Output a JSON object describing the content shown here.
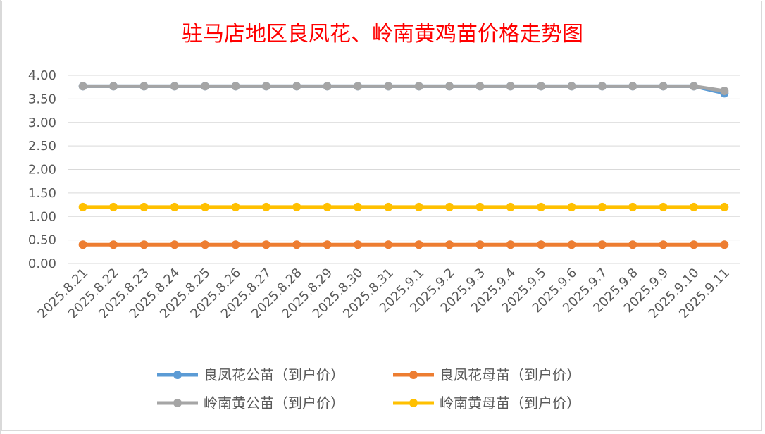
{
  "chart_data": {
    "type": "line",
    "title": "驻马店地区良凤花、岭南黄鸡苗价格走势图",
    "xlabel": "",
    "ylabel": "",
    "ylim": [
      0,
      4
    ],
    "yticks": [
      "0.00",
      "0.50",
      "1.00",
      "1.50",
      "2.00",
      "2.50",
      "3.00",
      "3.50",
      "4.00"
    ],
    "grid": true,
    "legend_position": "bottom",
    "categories": [
      "2025.8.21",
      "2025.8.22",
      "2025.8.23",
      "2025.8.24",
      "2025.8.25",
      "2025.8.26",
      "2025.8.27",
      "2025.8.28",
      "2025.8.29",
      "2025.8.30",
      "2025.8.31",
      "2025.9.1",
      "2025.9.2",
      "2025.9.3",
      "2025.9.4",
      "2025.9.5",
      "2025.9.6",
      "2025.9.7",
      "2025.9.8",
      "2025.9.9",
      "2025.9.10",
      "2025.9.11"
    ],
    "series": [
      {
        "name": "良凤花公苗（到户价）",
        "color": "#5b9bd5",
        "values": [
          3.77,
          3.77,
          3.77,
          3.77,
          3.77,
          3.77,
          3.77,
          3.77,
          3.77,
          3.77,
          3.77,
          3.77,
          3.77,
          3.77,
          3.77,
          3.77,
          3.77,
          3.77,
          3.77,
          3.77,
          3.77,
          3.62
        ]
      },
      {
        "name": "良凤花母苗（到户价）",
        "color": "#ed7d31",
        "values": [
          0.4,
          0.4,
          0.4,
          0.4,
          0.4,
          0.4,
          0.4,
          0.4,
          0.4,
          0.4,
          0.4,
          0.4,
          0.4,
          0.4,
          0.4,
          0.4,
          0.4,
          0.4,
          0.4,
          0.4,
          0.4,
          0.4
        ]
      },
      {
        "name": "岭南黄公苗（到户价）",
        "color": "#a5a5a5",
        "values": [
          3.77,
          3.77,
          3.77,
          3.77,
          3.77,
          3.77,
          3.77,
          3.77,
          3.77,
          3.77,
          3.77,
          3.77,
          3.77,
          3.77,
          3.77,
          3.77,
          3.77,
          3.77,
          3.77,
          3.77,
          3.77,
          3.67
        ]
      },
      {
        "name": "岭南黄母苗（到户价）",
        "color": "#ffc000",
        "values": [
          1.2,
          1.2,
          1.2,
          1.2,
          1.2,
          1.2,
          1.2,
          1.2,
          1.2,
          1.2,
          1.2,
          1.2,
          1.2,
          1.2,
          1.2,
          1.2,
          1.2,
          1.2,
          1.2,
          1.2,
          1.2,
          1.2
        ]
      }
    ]
  }
}
